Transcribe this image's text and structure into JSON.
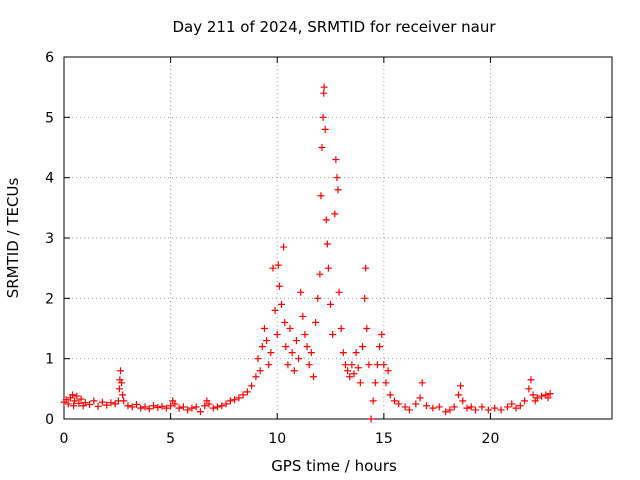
{
  "chart_data": {
    "type": "scatter",
    "title": "Day 211 of 2024, SRMTID for receiver naur",
    "xlabel": "GPS time / hours",
    "ylabel": "SRMTID / TECUs",
    "xlim": [
      0,
      25.7
    ],
    "ylim": [
      0,
      6
    ],
    "xticks": [
      0,
      5,
      10,
      15,
      20
    ],
    "yticks": [
      0,
      1,
      2,
      3,
      4,
      5,
      6
    ],
    "grid": true,
    "marker": "+",
    "color": "#ff0000",
    "series": [
      {
        "name": "SRMTID",
        "points": [
          [
            0.0,
            0.28
          ],
          [
            0.1,
            0.32
          ],
          [
            0.2,
            0.25
          ],
          [
            0.3,
            0.35
          ],
          [
            0.4,
            0.4
          ],
          [
            0.45,
            0.22
          ],
          [
            0.5,
            0.3
          ],
          [
            0.6,
            0.38
          ],
          [
            0.7,
            0.26
          ],
          [
            0.8,
            0.33
          ],
          [
            0.9,
            0.22
          ],
          [
            1.0,
            0.27
          ],
          [
            1.2,
            0.24
          ],
          [
            1.4,
            0.3
          ],
          [
            1.6,
            0.21
          ],
          [
            1.8,
            0.28
          ],
          [
            2.0,
            0.23
          ],
          [
            2.2,
            0.27
          ],
          [
            2.4,
            0.25
          ],
          [
            2.55,
            0.3
          ],
          [
            2.6,
            0.5
          ],
          [
            2.62,
            0.65
          ],
          [
            2.65,
            0.8
          ],
          [
            2.7,
            0.6
          ],
          [
            2.75,
            0.4
          ],
          [
            2.8,
            0.3
          ],
          [
            3.0,
            0.22
          ],
          [
            3.2,
            0.2
          ],
          [
            3.4,
            0.24
          ],
          [
            3.6,
            0.18
          ],
          [
            3.8,
            0.2
          ],
          [
            4.0,
            0.17
          ],
          [
            4.2,
            0.22
          ],
          [
            4.4,
            0.19
          ],
          [
            4.6,
            0.21
          ],
          [
            4.8,
            0.18
          ],
          [
            5.0,
            0.22
          ],
          [
            5.1,
            0.3
          ],
          [
            5.2,
            0.25
          ],
          [
            5.4,
            0.18
          ],
          [
            5.6,
            0.2
          ],
          [
            5.8,
            0.15
          ],
          [
            6.0,
            0.18
          ],
          [
            6.2,
            0.2
          ],
          [
            6.4,
            0.12
          ],
          [
            6.6,
            0.22
          ],
          [
            6.7,
            0.3
          ],
          [
            6.8,
            0.25
          ],
          [
            7.0,
            0.18
          ],
          [
            7.2,
            0.2
          ],
          [
            7.4,
            0.22
          ],
          [
            7.6,
            0.25
          ],
          [
            7.8,
            0.3
          ],
          [
            8.0,
            0.32
          ],
          [
            8.2,
            0.35
          ],
          [
            8.4,
            0.4
          ],
          [
            8.6,
            0.45
          ],
          [
            8.8,
            0.55
          ],
          [
            9.0,
            0.7
          ],
          [
            9.1,
            1.0
          ],
          [
            9.2,
            0.8
          ],
          [
            9.3,
            1.2
          ],
          [
            9.4,
            1.5
          ],
          [
            9.5,
            1.3
          ],
          [
            9.6,
            0.9
          ],
          [
            9.7,
            1.1
          ],
          [
            9.8,
            2.5
          ],
          [
            9.9,
            1.8
          ],
          [
            10.0,
            1.4
          ],
          [
            10.05,
            2.55
          ],
          [
            10.1,
            2.2
          ],
          [
            10.2,
            1.9
          ],
          [
            10.3,
            2.85
          ],
          [
            10.35,
            1.6
          ],
          [
            10.4,
            1.2
          ],
          [
            10.5,
            0.9
          ],
          [
            10.6,
            1.5
          ],
          [
            10.7,
            1.1
          ],
          [
            10.8,
            0.8
          ],
          [
            10.9,
            1.3
          ],
          [
            11.0,
            1.0
          ],
          [
            11.1,
            2.1
          ],
          [
            11.2,
            1.7
          ],
          [
            11.3,
            1.4
          ],
          [
            11.4,
            1.2
          ],
          [
            11.5,
            0.9
          ],
          [
            11.6,
            1.1
          ],
          [
            11.7,
            0.7
          ],
          [
            11.8,
            1.6
          ],
          [
            11.9,
            2.0
          ],
          [
            12.0,
            2.4
          ],
          [
            12.05,
            3.7
          ],
          [
            12.1,
            4.5
          ],
          [
            12.15,
            5.0
          ],
          [
            12.18,
            5.4
          ],
          [
            12.2,
            5.5
          ],
          [
            12.25,
            4.8
          ],
          [
            12.3,
            3.3
          ],
          [
            12.35,
            2.9
          ],
          [
            12.4,
            2.5
          ],
          [
            12.5,
            1.9
          ],
          [
            12.6,
            1.4
          ],
          [
            12.7,
            3.4
          ],
          [
            12.75,
            4.3
          ],
          [
            12.8,
            4.0
          ],
          [
            12.85,
            3.8
          ],
          [
            12.9,
            2.1
          ],
          [
            13.0,
            1.5
          ],
          [
            13.1,
            1.1
          ],
          [
            13.2,
            0.9
          ],
          [
            13.3,
            0.8
          ],
          [
            13.4,
            0.7
          ],
          [
            13.5,
            0.9
          ],
          [
            13.6,
            0.75
          ],
          [
            13.7,
            1.1
          ],
          [
            13.8,
            0.85
          ],
          [
            13.9,
            0.6
          ],
          [
            14.0,
            1.2
          ],
          [
            14.1,
            2.0
          ],
          [
            14.15,
            2.5
          ],
          [
            14.2,
            1.5
          ],
          [
            14.3,
            0.9
          ],
          [
            14.4,
            0.0
          ],
          [
            14.5,
            0.3
          ],
          [
            14.6,
            0.6
          ],
          [
            14.7,
            0.9
          ],
          [
            14.8,
            1.2
          ],
          [
            14.9,
            1.4
          ],
          [
            15.0,
            0.9
          ],
          [
            15.1,
            0.6
          ],
          [
            15.2,
            0.8
          ],
          [
            15.3,
            0.4
          ],
          [
            15.5,
            0.3
          ],
          [
            15.7,
            0.25
          ],
          [
            16.0,
            0.2
          ],
          [
            16.2,
            0.15
          ],
          [
            16.5,
            0.25
          ],
          [
            16.7,
            0.35
          ],
          [
            16.8,
            0.6
          ],
          [
            17.0,
            0.22
          ],
          [
            17.3,
            0.18
          ],
          [
            17.6,
            0.2
          ],
          [
            17.9,
            0.12
          ],
          [
            18.1,
            0.15
          ],
          [
            18.3,
            0.2
          ],
          [
            18.5,
            0.4
          ],
          [
            18.6,
            0.55
          ],
          [
            18.7,
            0.3
          ],
          [
            18.9,
            0.18
          ],
          [
            19.1,
            0.2
          ],
          [
            19.3,
            0.15
          ],
          [
            19.6,
            0.2
          ],
          [
            19.9,
            0.15
          ],
          [
            20.2,
            0.18
          ],
          [
            20.5,
            0.15
          ],
          [
            20.8,
            0.2
          ],
          [
            21.0,
            0.25
          ],
          [
            21.2,
            0.18
          ],
          [
            21.4,
            0.22
          ],
          [
            21.6,
            0.3
          ],
          [
            21.8,
            0.5
          ],
          [
            21.9,
            0.65
          ],
          [
            22.0,
            0.4
          ],
          [
            22.1,
            0.3
          ],
          [
            22.2,
            0.35
          ],
          [
            22.4,
            0.38
          ],
          [
            22.6,
            0.4
          ],
          [
            22.7,
            0.35
          ],
          [
            22.8,
            0.42
          ]
        ]
      }
    ]
  }
}
